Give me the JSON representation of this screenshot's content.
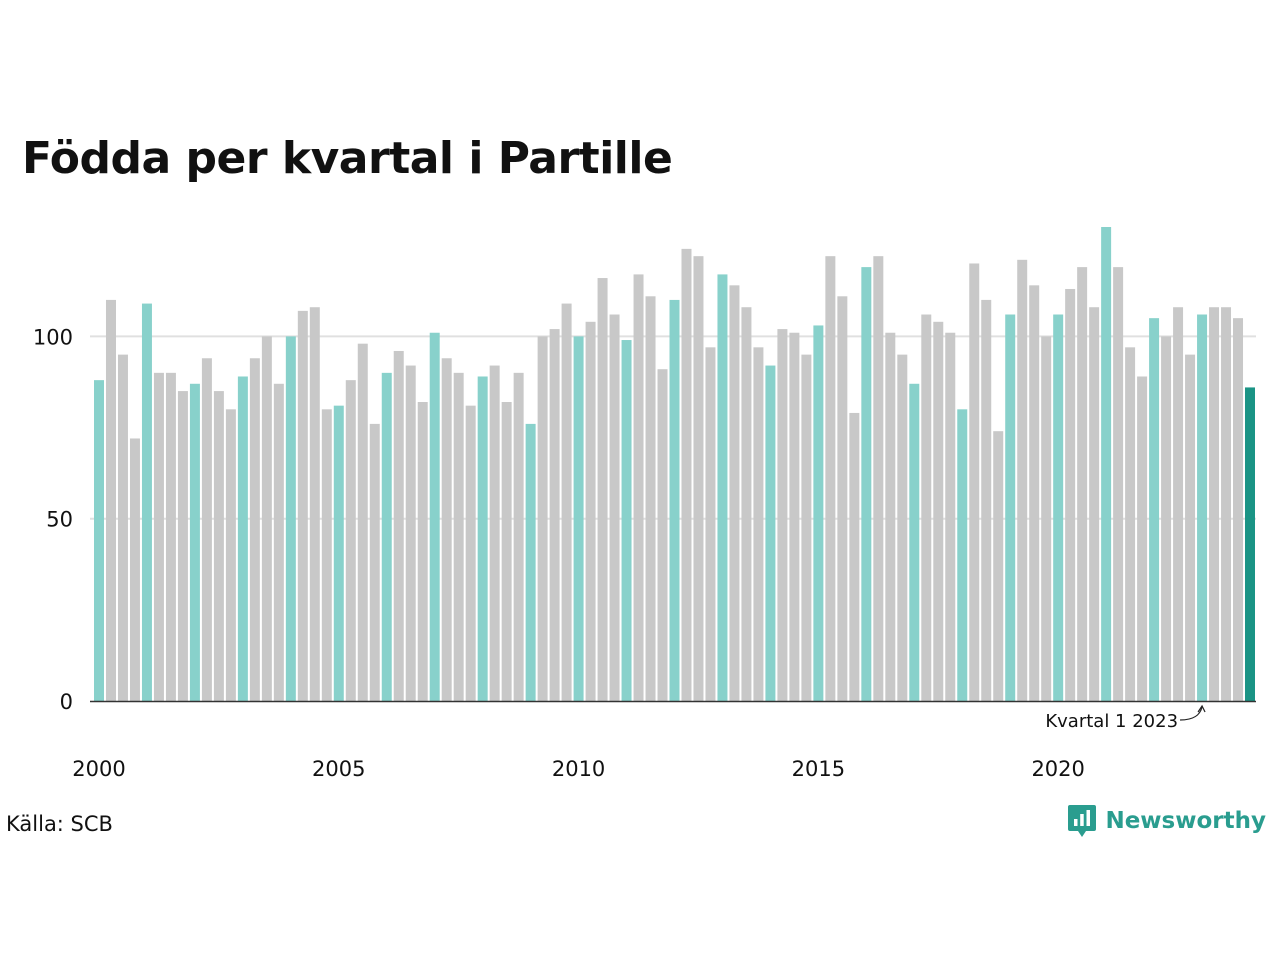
{
  "chart_data": {
    "type": "bar",
    "title": "Födda per kvartal i Partille",
    "xlabel": "",
    "ylabel": "",
    "ylim": [
      0,
      130
    ],
    "y_ticks": [
      0,
      50,
      100
    ],
    "x_tick_labels": [
      "2000",
      "2005",
      "2010",
      "2015",
      "2020"
    ],
    "start_year": 2000,
    "grid": true,
    "colors": {
      "q1": "#88d1cb",
      "other": "#c8c8c8",
      "latest": "#1a9485",
      "grid": "#e0e0e0",
      "axis": "#333333"
    },
    "values": [
      88,
      110,
      95,
      72,
      109,
      90,
      90,
      85,
      87,
      94,
      85,
      80,
      89,
      94,
      100,
      87,
      100,
      107,
      108,
      80,
      81,
      88,
      98,
      76,
      90,
      96,
      92,
      82,
      101,
      94,
      90,
      81,
      89,
      92,
      82,
      90,
      76,
      100,
      102,
      109,
      100,
      104,
      116,
      106,
      99,
      117,
      111,
      91,
      110,
      124,
      122,
      97,
      117,
      114,
      108,
      97,
      92,
      102,
      101,
      95,
      103,
      122,
      111,
      79,
      119,
      122,
      101,
      95,
      87,
      106,
      104,
      101,
      80,
      120,
      110,
      74,
      106,
      121,
      114,
      100,
      106,
      113,
      119,
      108,
      130,
      119,
      97,
      89,
      105,
      100,
      108,
      95,
      106,
      108,
      108,
      105,
      86
    ],
    "annotation": {
      "text": "Kvartal 1 2023",
      "bar_index": 92
    }
  },
  "source": "Källa: SCB",
  "brand": {
    "name": "Newsworthy",
    "icon": "bar-chart-logo-icon",
    "color": "#2a9d8f"
  }
}
